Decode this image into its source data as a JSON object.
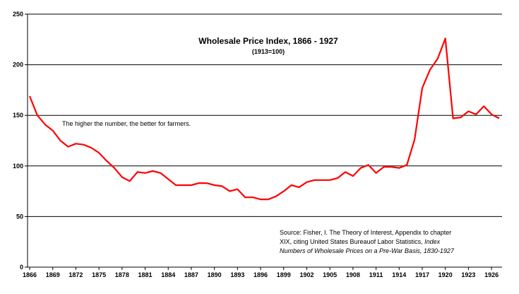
{
  "chart_data": {
    "type": "line",
    "title": "Wholesale Price Index, 1866 - 1927",
    "subtitle": "(1913=100)",
    "annotation": "The higher the number, the better for farmers.",
    "source_lines": [
      "Source: Fisher, I. The Theory of Interest, Appendix to chapter",
      "XIX, citing United States Bureauof Labor Statistics,",
      "Index",
      "Numbers of Wholesale Prices on a Pre-War Basis, 1830-1927"
    ],
    "xlabel": "",
    "ylabel": "",
    "xlim": [
      1866,
      1927
    ],
    "ylim": [
      0,
      250
    ],
    "x_ticks": [
      1866,
      1869,
      1872,
      1875,
      1878,
      1881,
      1884,
      1887,
      1890,
      1893,
      1896,
      1899,
      1902,
      1905,
      1908,
      1911,
      1914,
      1917,
      1920,
      1923,
      1926
    ],
    "y_ticks": [
      0,
      50,
      100,
      150,
      200,
      250
    ],
    "grid": "horizontal",
    "color": "#ff0000",
    "series": [
      {
        "x": [
          1866,
          1867,
          1868,
          1869,
          1870,
          1871,
          1872,
          1873,
          1874,
          1875,
          1876,
          1877,
          1878,
          1879,
          1880,
          1881,
          1882,
          1883,
          1884,
          1885,
          1886,
          1887,
          1888,
          1889,
          1890,
          1891,
          1892,
          1893,
          1894,
          1895,
          1896,
          1897,
          1898,
          1899,
          1900,
          1901,
          1902,
          1903,
          1904,
          1905,
          1906,
          1907,
          1908,
          1909,
          1910,
          1911,
          1912,
          1913,
          1914,
          1915,
          1916,
          1917,
          1918,
          1919,
          1920,
          1921,
          1922,
          1923,
          1924,
          1925,
          1926,
          1927
        ],
        "y": [
          169,
          150,
          141,
          135,
          125,
          119,
          122,
          121,
          118,
          113,
          105,
          98,
          89,
          85,
          94,
          93,
          95,
          93,
          87,
          81,
          81,
          81,
          83,
          83,
          81,
          80,
          75,
          77,
          69,
          69,
          67,
          67,
          70,
          75,
          81,
          79,
          84,
          86,
          86,
          86,
          88,
          94,
          90,
          98,
          101,
          93,
          99,
          99,
          98,
          101,
          126,
          177,
          195,
          206,
          226,
          147,
          148,
          154,
          151,
          159,
          151,
          147
        ]
      }
    ]
  }
}
